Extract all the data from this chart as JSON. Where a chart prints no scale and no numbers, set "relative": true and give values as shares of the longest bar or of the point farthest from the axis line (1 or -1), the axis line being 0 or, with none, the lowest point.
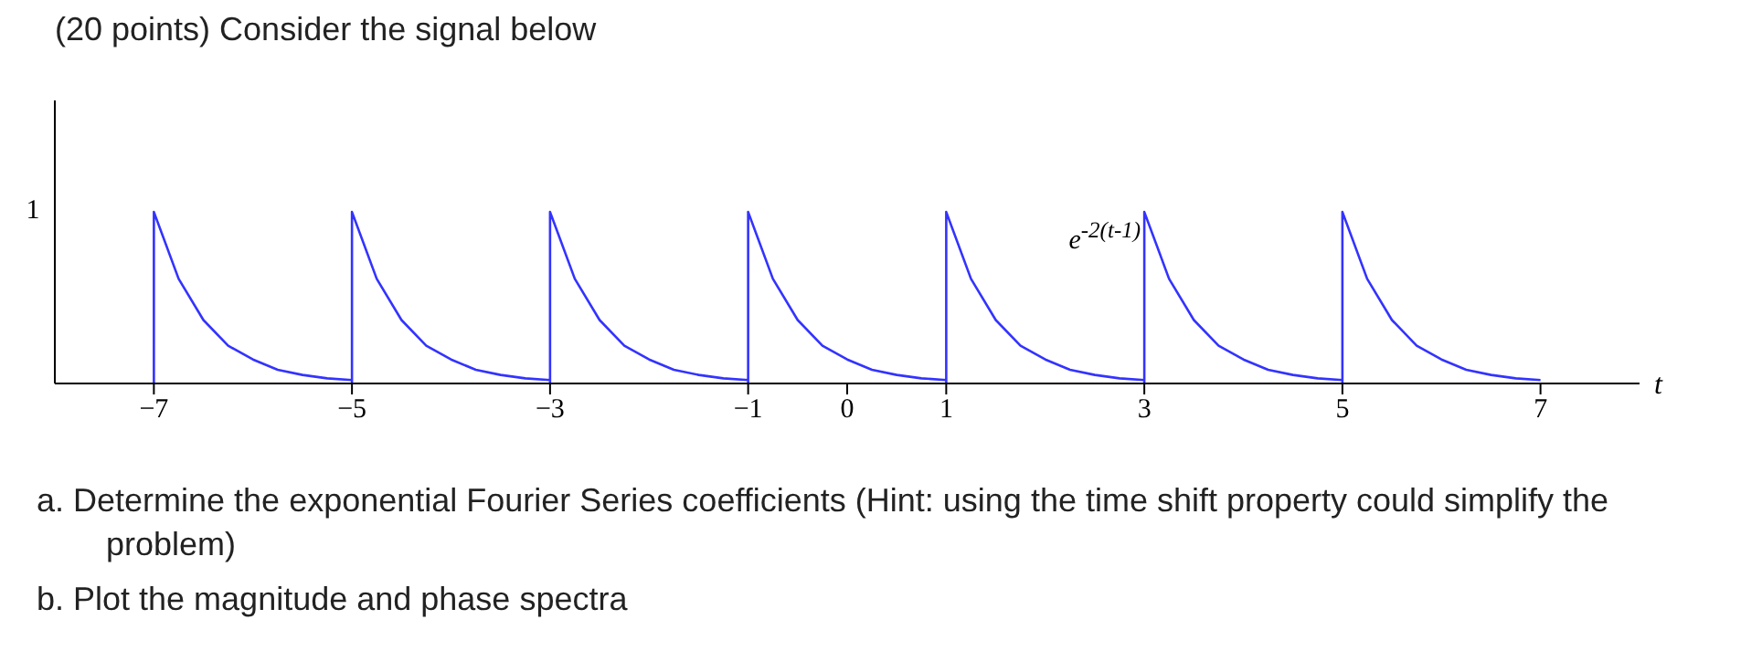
{
  "chart_data": {
    "type": "line",
    "title": "(20 points) Consider the signal below",
    "xlabel": "t",
    "x": [
      -7,
      -7,
      -6.75,
      -6.5,
      -6.25,
      -6,
      -5.75,
      -5.5,
      -5.25,
      -5,
      -5,
      -5,
      -4.75,
      -4.5,
      -4.25,
      -4,
      -3.75,
      -3.5,
      -3.25,
      -3,
      -3,
      -3,
      -2.75,
      -2.5,
      -2.25,
      -2,
      -1.75,
      -1.5,
      -1.25,
      -1,
      -1,
      -1,
      -0.75,
      -0.5,
      -0.25,
      0,
      0.25,
      0.5,
      0.75,
      1,
      1,
      1,
      1.25,
      1.5,
      1.75,
      2,
      2.25,
      2.5,
      2.75,
      3,
      3,
      3,
      3.25,
      3.5,
      3.75,
      4,
      4.25,
      4.5,
      4.75,
      5,
      5,
      5,
      5.25,
      5.5,
      5.75,
      6,
      6.25,
      6.5,
      6.75,
      7
    ],
    "series": [
      {
        "color": "#3333ff",
        "values": [
          0,
          1,
          0.61,
          0.37,
          0.22,
          0.14,
          0.08,
          0.05,
          0.03,
          0.02,
          0,
          1,
          0.61,
          0.37,
          0.22,
          0.14,
          0.08,
          0.05,
          0.03,
          0.02,
          0,
          1,
          0.61,
          0.37,
          0.22,
          0.14,
          0.08,
          0.05,
          0.03,
          0.02,
          0,
          1,
          0.61,
          0.37,
          0.22,
          0.14,
          0.08,
          0.05,
          0.03,
          0.02,
          0,
          1,
          0.61,
          0.37,
          0.22,
          0.14,
          0.08,
          0.05,
          0.03,
          0.02,
          0,
          1,
          0.61,
          0.37,
          0.22,
          0.14,
          0.08,
          0.05,
          0.03,
          0.02,
          0,
          1,
          0.61,
          0.37,
          0.22,
          0.14,
          0.08,
          0.05,
          0.03,
          0.02
        ]
      }
    ],
    "xlim": [
      -8,
      8
    ],
    "xticks": [
      -7,
      -5,
      -3,
      -1,
      0,
      1,
      3,
      5,
      7
    ],
    "relative": true,
    "grid": false,
    "legend": false,
    "marker": "none",
    "line_style": "solid",
    "annotations": [
      "e$^{-2(t-1)}$",
      "1",
      "a. Determine the exponential Fourier Series coefficients (Hint: using the time shift property could simplify the problem)",
      "b. Plot the magnitude and phase spectra"
    ]
  }
}
